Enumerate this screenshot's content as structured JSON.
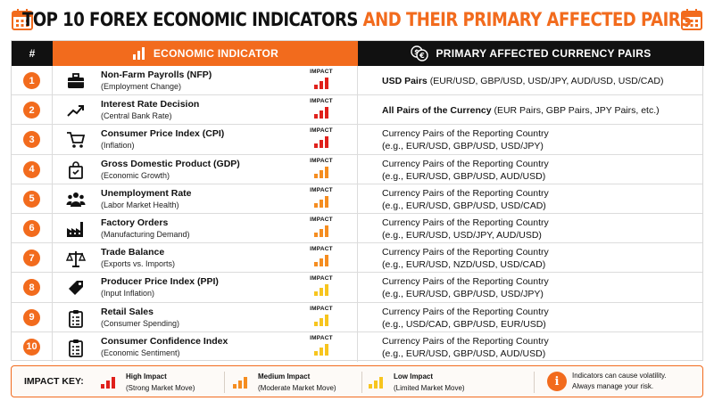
{
  "title": {
    "part1": "TOP 10 FOREX ECONOMIC INDICATORS",
    "part2": "AND THEIR PRIMARY AFFECTED PAIRS"
  },
  "colors": {
    "accent": "#f26b1d",
    "high": "#e0201b",
    "medium": "#f58d20",
    "low": "#f7c51e",
    "dark": "#111111"
  },
  "header": {
    "num": "#",
    "indicator": "ECONOMIC INDICATOR",
    "pairs": "PRIMARY AFFECTED CURRENCY PAIRS",
    "impact_label": "IMPACT"
  },
  "rows": [
    {
      "num": "1",
      "icon": "briefcase-icon",
      "name": "Non-Farm Payrolls (NFP)",
      "sub": "(Employment Change)",
      "impact": "high",
      "pair_bold": "USD Pairs",
      "pair_rest": " (EUR/USD, GBP/USD, USD/JPY, AUD/USD, USD/CAD)"
    },
    {
      "num": "2",
      "icon": "trend-up-icon",
      "name": "Interest Rate Decision",
      "sub": "(Central Bank Rate)",
      "impact": "high",
      "pair_bold": "All Pairs of the Currency",
      "pair_rest": " (EUR Pairs, GBP Pairs, JPY Pairs, etc.)"
    },
    {
      "num": "3",
      "icon": "cart-icon",
      "name": "Consumer Price Index (CPI)",
      "sub": "(Inflation)",
      "impact": "high",
      "line1": "Currency Pairs of the Reporting Country",
      "line2": "(e.g., EUR/USD, GBP/USD, USD/JPY)"
    },
    {
      "num": "4",
      "icon": "shopping-bag-icon",
      "name": "Gross Domestic Product (GDP)",
      "sub": "(Economic Growth)",
      "impact": "medium",
      "line1": "Currency Pairs of the Reporting Country",
      "line2": "(e.g., EUR/USD, GBP/USD, AUD/USD)"
    },
    {
      "num": "5",
      "icon": "people-icon",
      "name": "Unemployment Rate",
      "sub": "(Labor Market Health)",
      "impact": "medium",
      "line1": "Currency Pairs of the Reporting Country",
      "line2": "(e.g., EUR/USD, GBP/USD, USD/CAD)"
    },
    {
      "num": "6",
      "icon": "factory-icon",
      "name": "Factory Orders",
      "sub": "(Manufacturing Demand)",
      "impact": "medium",
      "line1": "Currency Pairs of the Reporting Country",
      "line2": "(e.g., EUR/USD, USD/JPY, AUD/USD)"
    },
    {
      "num": "7",
      "icon": "scale-icon",
      "name": "Trade Balance",
      "sub": "(Exports vs. Imports)",
      "impact": "medium",
      "line1": "Currency Pairs of the Reporting Country",
      "line2": "(e.g., EUR/USD, NZD/USD, USD/CAD)"
    },
    {
      "num": "8",
      "icon": "price-tag-icon",
      "name": "Producer Price Index (PPI)",
      "sub": "(Input Inflation)",
      "impact": "low",
      "line1": "Currency Pairs of the Reporting Country",
      "line2": "(e.g., EUR/USD, GBP/USD, USD/JPY)"
    },
    {
      "num": "9",
      "icon": "clipboard-icon",
      "name": "Retail Sales",
      "sub": "(Consumer Spending)",
      "impact": "low",
      "line1": "Currency Pairs of the Reporting Country",
      "line2": "(e.g., USD/CAD, GBP/USD, EUR/USD)"
    },
    {
      "num": "10",
      "icon": "clipboard-icon",
      "name": "Consumer Confidence Index",
      "sub": "(Economic Sentiment)",
      "impact": "low",
      "line1": "Currency Pairs of the Reporting Country",
      "line2": "(e.g., EUR/USD, GBP/USD, AUD/USD)"
    }
  ],
  "key": {
    "title": "IMPACT KEY:",
    "high": {
      "label": "High Impact",
      "desc": "(Strong Market Move)"
    },
    "medium": {
      "label": "Medium Impact",
      "desc": "(Moderate Market Move)"
    },
    "low": {
      "label": "Low Impact",
      "desc": "(Limited Market Move)"
    },
    "note_line1": "Indicators can cause volatility.",
    "note_line2": "Always manage your risk."
  }
}
